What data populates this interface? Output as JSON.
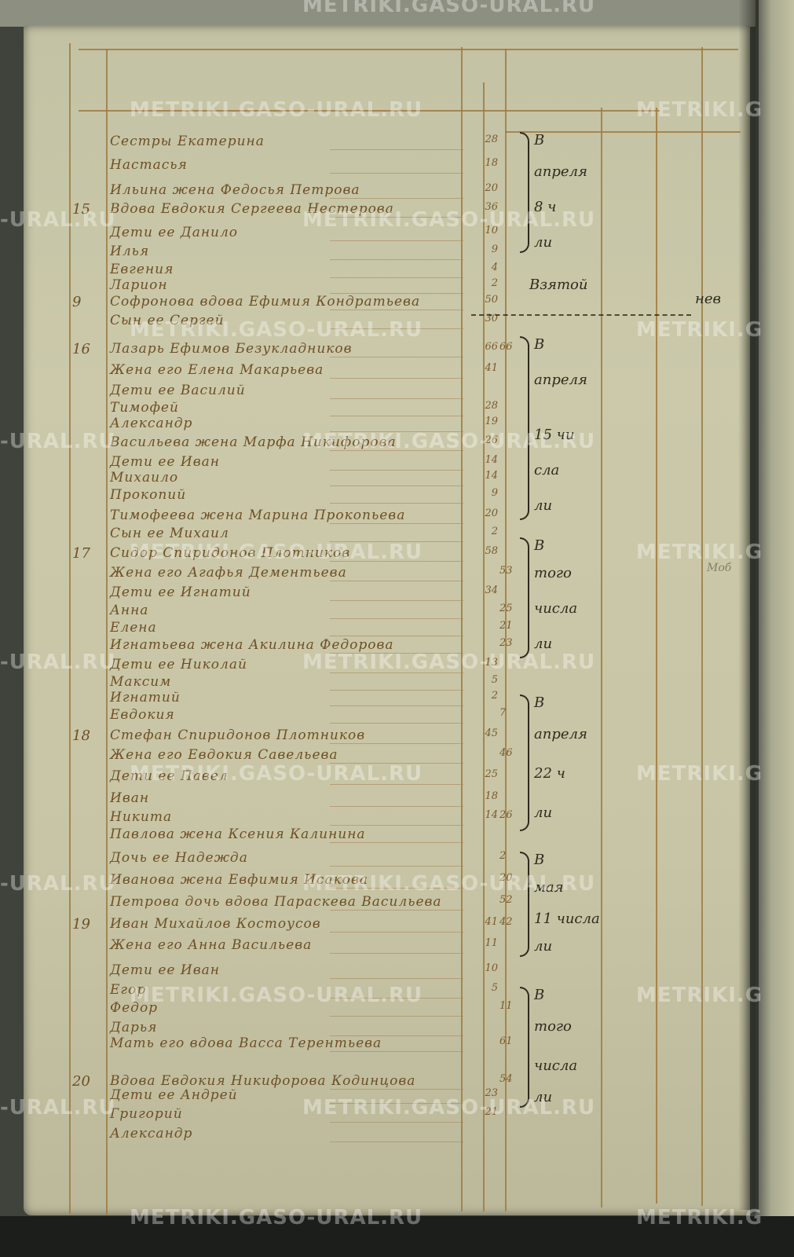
{
  "watermark": "METRIKI.GASO-URAL.RU",
  "watermark_partial_left": "-URAL.RU",
  "watermark_partial_right": "METRIKI.G",
  "rows": [
    {
      "num": "",
      "name": "Сестры Екатерина",
      "age": "28",
      "age2": ""
    },
    {
      "num": "",
      "name": "Настасья",
      "age": "18",
      "age2": ""
    },
    {
      "num": "",
      "name": "Ильина жена Федосья Петрова",
      "age": "20",
      "age2": ""
    },
    {
      "num": "15",
      "name": "Вдова Евдокия Сергеева Нестерова",
      "age": "36",
      "age2": ""
    },
    {
      "num": "",
      "name": "Дети ее Данило",
      "age": "10",
      "age2": ""
    },
    {
      "num": "",
      "name": "Илья",
      "age": "9",
      "age2": ""
    },
    {
      "num": "",
      "name": "Евгения",
      "age": "4",
      "age2": ""
    },
    {
      "num": "",
      "name": "Ларион",
      "age": "2",
      "age2": ""
    },
    {
      "num": "9",
      "name": "Софронова вдова Ефимия Кондратьева",
      "age": "50",
      "age2": ""
    },
    {
      "num": "",
      "name": "Сын ее Сергей",
      "age": "30",
      "age2": ""
    },
    {
      "num": "16",
      "name": "Лазарь Ефимов Безукладников",
      "age": "66",
      "age2": "66"
    },
    {
      "num": "",
      "name": "Жена его Елена Макарьева",
      "age": "41",
      "age2": ""
    },
    {
      "num": "",
      "name": "Дети ее Василий",
      "age": "",
      "age2": ""
    },
    {
      "num": "",
      "name": "Тимофей",
      "age": "28",
      "age2": ""
    },
    {
      "num": "",
      "name": "Александр",
      "age": "19",
      "age2": ""
    },
    {
      "num": "",
      "name": "Васильева жена Марфа Никифорова",
      "age": "26",
      "age2": ""
    },
    {
      "num": "",
      "name": "Дети ее Иван",
      "age": "14",
      "age2": ""
    },
    {
      "num": "",
      "name": "Михаило",
      "age": "14",
      "age2": ""
    },
    {
      "num": "",
      "name": "Прокопий",
      "age": "9",
      "age2": ""
    },
    {
      "num": "",
      "name": "Тимофеева жена Марина Прокопьева",
      "age": "20",
      "age2": ""
    },
    {
      "num": "",
      "name": "Сын ее Михаил",
      "age": "2",
      "age2": ""
    },
    {
      "num": "17",
      "name": "Сидор Спиридонов Плотников",
      "age": "58",
      "age2": ""
    },
    {
      "num": "",
      "name": "Жена его Агафья Дементьева",
      "age": "",
      "age2": "53"
    },
    {
      "num": "",
      "name": "Дети ее Игнатий",
      "age": "34",
      "age2": ""
    },
    {
      "num": "",
      "name": "Анна",
      "age": "",
      "age2": "25"
    },
    {
      "num": "",
      "name": "Елена",
      "age": "",
      "age2": "21"
    },
    {
      "num": "",
      "name": "Игнатьева жена Акилина Федорова",
      "age": "",
      "age2": "23"
    },
    {
      "num": "",
      "name": "Дети ее Николай",
      "age": "13",
      "age2": ""
    },
    {
      "num": "",
      "name": "Максим",
      "age": "5",
      "age2": ""
    },
    {
      "num": "",
      "name": "Игнатий",
      "age": "2",
      "age2": ""
    },
    {
      "num": "",
      "name": "Евдокия",
      "age": "",
      "age2": "7"
    },
    {
      "num": "18",
      "name": "Стефан Спиридонов Плотников",
      "age": "45",
      "age2": ""
    },
    {
      "num": "",
      "name": "Жена его Евдокия Савельева",
      "age": "",
      "age2": "46"
    },
    {
      "num": "",
      "name": "Дети ее Павел",
      "age": "25",
      "age2": ""
    },
    {
      "num": "",
      "name": "Иван",
      "age": "18",
      "age2": ""
    },
    {
      "num": "",
      "name": "Никита",
      "age": "14",
      "age2": "26"
    },
    {
      "num": "",
      "name": "Павлова жена Ксения Калинина",
      "age": "",
      "age2": ""
    },
    {
      "num": "",
      "name": "Дочь ее Надежда",
      "age": "",
      "age2": "2"
    },
    {
      "num": "",
      "name": "Иванова жена Евфимия Исакова",
      "age": "",
      "age2": "20"
    },
    {
      "num": "",
      "name": "Петрова дочь вдова Параскева Васильева",
      "age": "",
      "age2": "52"
    },
    {
      "num": "19",
      "name": "Иван Михайлов Костоусов",
      "age": "41",
      "age2": "42"
    },
    {
      "num": "",
      "name": "Жена его Анна Васильева",
      "age": "11",
      "age2": ""
    },
    {
      "num": "",
      "name": "Дети ее Иван",
      "age": "10",
      "age2": ""
    },
    {
      "num": "",
      "name": "Егор",
      "age": "5",
      "age2": ""
    },
    {
      "num": "",
      "name": "Федор",
      "age": "",
      "age2": "11"
    },
    {
      "num": "",
      "name": "Дарья",
      "age": "",
      "age2": ""
    },
    {
      "num": "",
      "name": "Мать его вдова Васса Терентьева",
      "age": "",
      "age2": "61"
    },
    {
      "num": "20",
      "name": "Вдова Евдокия Никифорова Кодинцова",
      "age": "",
      "age2": "54"
    },
    {
      "num": "",
      "name": "Дети ее Андрей",
      "age": "23",
      "age2": ""
    },
    {
      "num": "",
      "name": "Григорий",
      "age": "21",
      "age2": ""
    },
    {
      "num": "",
      "name": "Александр",
      "age": "",
      "age2": ""
    }
  ],
  "notes": [
    {
      "lines": [
        "В",
        "апреля",
        "8 ч",
        "ли"
      ]
    },
    {
      "lines": [
        "Взятой"
      ]
    },
    {
      "lines": [
        "В",
        "апреля",
        "15 чи",
        "сла",
        "ли"
      ]
    },
    {
      "lines": [
        "В",
        "того",
        "числа",
        "ли"
      ]
    },
    {
      "lines": [
        "В",
        "апреля",
        "22 ч",
        "ли"
      ]
    },
    {
      "lines": [
        "В",
        "мая",
        "11 числа",
        "ли"
      ]
    },
    {
      "lines": [
        "В",
        "того",
        "числа",
        "ли"
      ]
    }
  ],
  "margin_notes": {
    "right_top": "нев",
    "right_mid": "Моб"
  },
  "colors": {
    "ink": "#6e4f25",
    "note_ink": "#2e2a1e",
    "paper": "#c9c7a8",
    "ruling": "#a07a3e"
  }
}
